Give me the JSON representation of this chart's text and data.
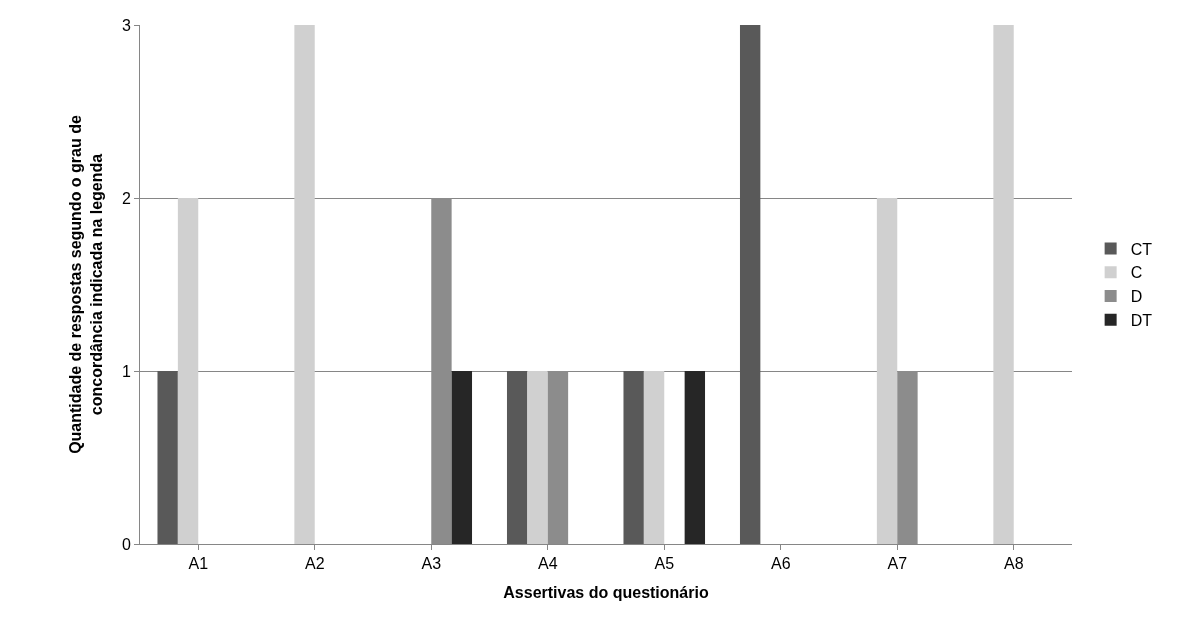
{
  "chart_data": {
    "type": "bar",
    "xlabel": "Assertivas do questionário",
    "ylabel": "Quantidade de respostas segundo o grau de concordância indicada na legenda",
    "categories": [
      "A1",
      "A2",
      "A3",
      "A4",
      "A5",
      "A6",
      "A7",
      "A8"
    ],
    "series": [
      {
        "name": "CT",
        "color": "#595959",
        "values": [
          1,
          0,
          0,
          1,
          1,
          3,
          0,
          0
        ]
      },
      {
        "name": "C",
        "color": "#d0d0d0",
        "values": [
          2,
          3,
          0,
          1,
          1,
          0,
          2,
          3
        ]
      },
      {
        "name": "D",
        "color": "#8c8c8c",
        "values": [
          0,
          0,
          2,
          1,
          0,
          0,
          1,
          0
        ]
      },
      {
        "name": "DT",
        "color": "#262626",
        "values": [
          0,
          0,
          1,
          0,
          1,
          0,
          0,
          0
        ]
      }
    ],
    "ylim": [
      0,
      3
    ],
    "yticks": [
      0,
      1,
      2,
      3
    ],
    "grid": "y",
    "legend": "right"
  }
}
